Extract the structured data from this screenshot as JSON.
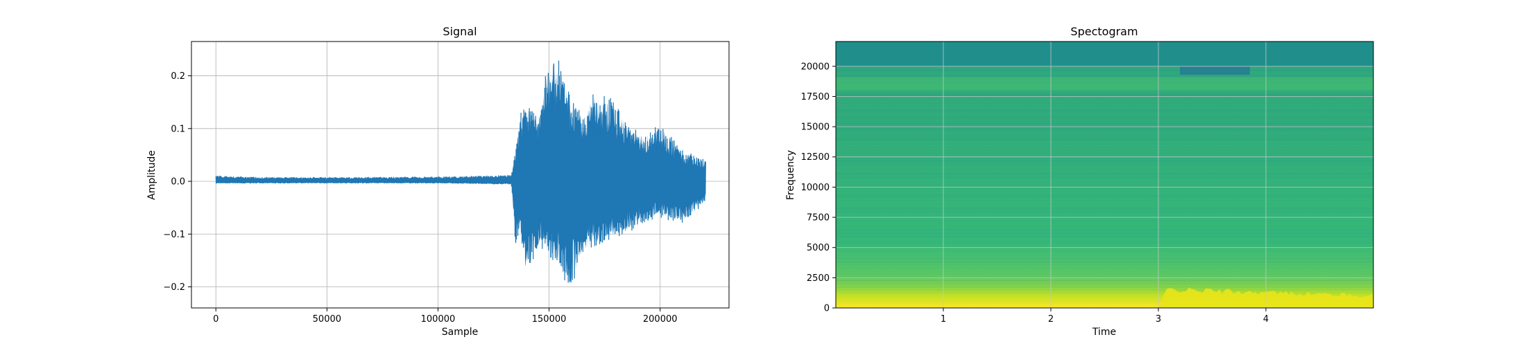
{
  "chart_data": [
    {
      "type": "line",
      "title": "Signal",
      "xlabel": "Sample",
      "ylabel": "Amplitude",
      "xlim": [
        -11000,
        231000
      ],
      "ylim": [
        -0.24,
        0.265
      ],
      "grid": true,
      "line_color": "#1f77b4",
      "x_ticks": [
        0,
        50000,
        100000,
        150000,
        200000
      ],
      "x_tick_labels": [
        "0",
        "50000",
        "100000",
        "150000",
        "200000"
      ],
      "y_ticks": [
        -0.2,
        -0.1,
        0.0,
        0.1,
        0.2
      ],
      "y_tick_labels": [
        "−0.2",
        "−0.1",
        "0.0",
        "0.1",
        "0.2"
      ],
      "series": [
        {
          "x_range": [
            0,
            220500
          ],
          "envelope": [
            {
              "x": 0,
              "max": 0.011,
              "min": -0.004
            },
            {
              "x": 20000,
              "max": 0.008,
              "min": -0.004
            },
            {
              "x": 60000,
              "max": 0.008,
              "min": -0.004
            },
            {
              "x": 100000,
              "max": 0.009,
              "min": -0.004
            },
            {
              "x": 133000,
              "max": 0.012,
              "min": -0.006
            },
            {
              "x": 135000,
              "max": 0.06,
              "min": -0.13
            },
            {
              "x": 137000,
              "max": 0.13,
              "min": -0.1
            },
            {
              "x": 140000,
              "max": 0.15,
              "min": -0.19
            },
            {
              "x": 145000,
              "max": 0.12,
              "min": -0.12
            },
            {
              "x": 150000,
              "max": 0.24,
              "min": -0.15
            },
            {
              "x": 155000,
              "max": 0.23,
              "min": -0.17
            },
            {
              "x": 159000,
              "max": 0.17,
              "min": -0.215
            },
            {
              "x": 165000,
              "max": 0.13,
              "min": -0.14
            },
            {
              "x": 170000,
              "max": 0.17,
              "min": -0.13
            },
            {
              "x": 178000,
              "max": 0.16,
              "min": -0.11
            },
            {
              "x": 185000,
              "max": 0.11,
              "min": -0.1
            },
            {
              "x": 192000,
              "max": 0.09,
              "min": -0.08
            },
            {
              "x": 200000,
              "max": 0.11,
              "min": -0.07
            },
            {
              "x": 210000,
              "max": 0.06,
              "min": -0.08
            },
            {
              "x": 220500,
              "max": 0.04,
              "min": -0.04
            }
          ]
        }
      ]
    },
    {
      "type": "heatmap",
      "title": "Spectogram",
      "xlabel": "Time",
      "ylabel": "Frequency",
      "xlim": [
        0,
        5.0
      ],
      "ylim": [
        0,
        22050
      ],
      "grid": true,
      "colormap": "viridis",
      "x_ticks": [
        1,
        2,
        3,
        4
      ],
      "x_tick_labels": [
        "1",
        "2",
        "3",
        "4"
      ],
      "y_ticks": [
        0,
        2500,
        5000,
        7500,
        10000,
        12500,
        15000,
        17500,
        20000
      ],
      "y_tick_labels": [
        "0",
        "2500",
        "5000",
        "7500",
        "10000",
        "12500",
        "15000",
        "17500",
        "20000"
      ],
      "colors": {
        "top_band": "#208f8c",
        "upper_notch": "#27818e",
        "mid": "#31b57b",
        "low_energy": "#d7e219",
        "strong_energy": "#e8e419"
      }
    }
  ]
}
